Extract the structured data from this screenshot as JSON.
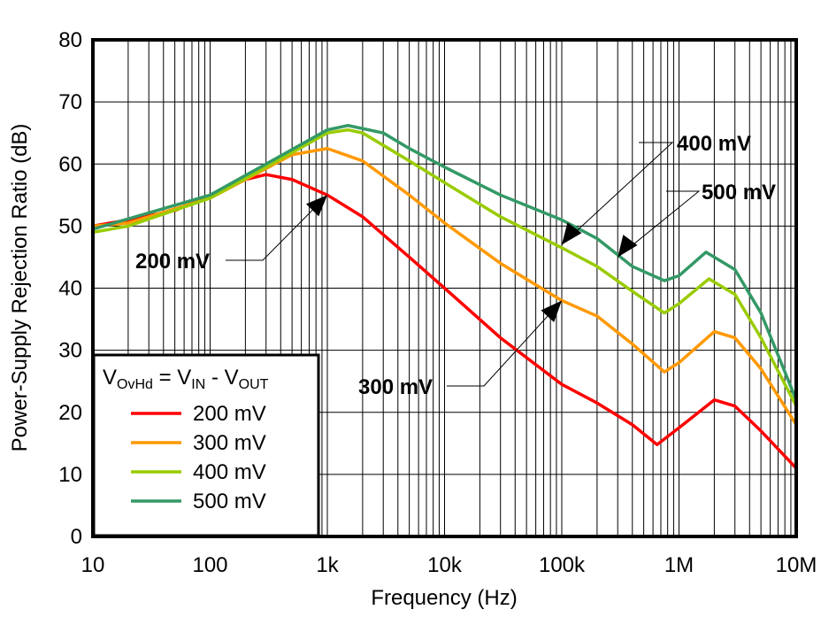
{
  "chart_data": {
    "type": "line",
    "title": "",
    "xlabel": "Frequency (Hz)",
    "ylabel": "Power-Supply Rejection Ratio (dB)",
    "x_scale": "log",
    "xlim": [
      10,
      10000000
    ],
    "ylim": [
      0,
      80
    ],
    "grid": true,
    "x_ticks": [
      {
        "v": 10,
        "label": "10"
      },
      {
        "v": 100,
        "label": "100"
      },
      {
        "v": 1000,
        "label": "1k"
      },
      {
        "v": 10000,
        "label": "10k"
      },
      {
        "v": 100000,
        "label": "100k"
      },
      {
        "v": 1000000,
        "label": "1M"
      },
      {
        "v": 10000000,
        "label": "10M"
      }
    ],
    "y_ticks": [
      0,
      10,
      20,
      30,
      40,
      50,
      60,
      70,
      80
    ],
    "legend": {
      "placement": "bottom-left",
      "title": {
        "v": "V",
        "sub1": "OvHd",
        "eq": " = V",
        "sub2": "IN",
        "minus": " - V",
        "sub3": "OUT"
      }
    },
    "series": [
      {
        "name": "200 mV",
        "color": "#ff0000",
        "x": [
          10,
          20,
          50,
          100,
          200,
          300,
          500,
          1000,
          2000,
          5000,
          10000,
          30000,
          100000,
          200000,
          400000,
          650000,
          1000000,
          2000000,
          3000000,
          5000000,
          10000000
        ],
        "y": [
          50,
          51,
          52.5,
          55,
          57.5,
          58.3,
          57.5,
          55,
          51.5,
          45,
          40,
          32,
          24.5,
          21.5,
          18,
          14.8,
          17.5,
          22,
          21,
          17,
          11
        ]
      },
      {
        "name": "300 mV",
        "color": "#ff9900",
        "x": [
          10,
          20,
          100,
          200,
          500,
          1000,
          2000,
          5000,
          10000,
          30000,
          100000,
          200000,
          400000,
          750000,
          1000000,
          2000000,
          3000000,
          5000000,
          10000000
        ],
        "y": [
          50,
          50.5,
          54.5,
          57.5,
          61.5,
          62.5,
          60.5,
          55,
          50.5,
          44,
          38,
          35.5,
          31,
          26.5,
          28,
          33,
          32,
          27,
          18
        ]
      },
      {
        "name": "400 mV",
        "color": "#99cc00",
        "x": [
          10,
          20,
          100,
          300,
          1000,
          1500,
          2000,
          5000,
          10000,
          30000,
          100000,
          200000,
          400000,
          750000,
          1000000,
          1800000,
          3000000,
          5000000,
          10000000
        ],
        "y": [
          49,
          50,
          54.5,
          59.5,
          65,
          65.5,
          65,
          60.5,
          57,
          51.5,
          46.5,
          43.5,
          39.5,
          36,
          37.5,
          41.5,
          39,
          32,
          21
        ]
      },
      {
        "name": "500 mV",
        "color": "#339966",
        "x": [
          10,
          100,
          300,
          1000,
          1500,
          3000,
          5000,
          10000,
          30000,
          100000,
          200000,
          400000,
          750000,
          1000000,
          1700000,
          3000000,
          5000000,
          10000000
        ],
        "y": [
          49.5,
          55,
          60,
          65.5,
          66.2,
          65,
          62.5,
          59.5,
          55,
          51,
          48,
          43.5,
          41.2,
          42,
          45.8,
          43,
          36,
          22
        ]
      }
    ],
    "annotations": [
      {
        "text": "200 mV",
        "target": [
          1000,
          55
        ]
      },
      {
        "text": "300 mV",
        "target": [
          100000,
          38
        ]
      },
      {
        "text": "400 mV",
        "target": [
          100000,
          47
        ]
      },
      {
        "text": "500 mV",
        "target": [
          300000,
          45
        ]
      }
    ]
  }
}
